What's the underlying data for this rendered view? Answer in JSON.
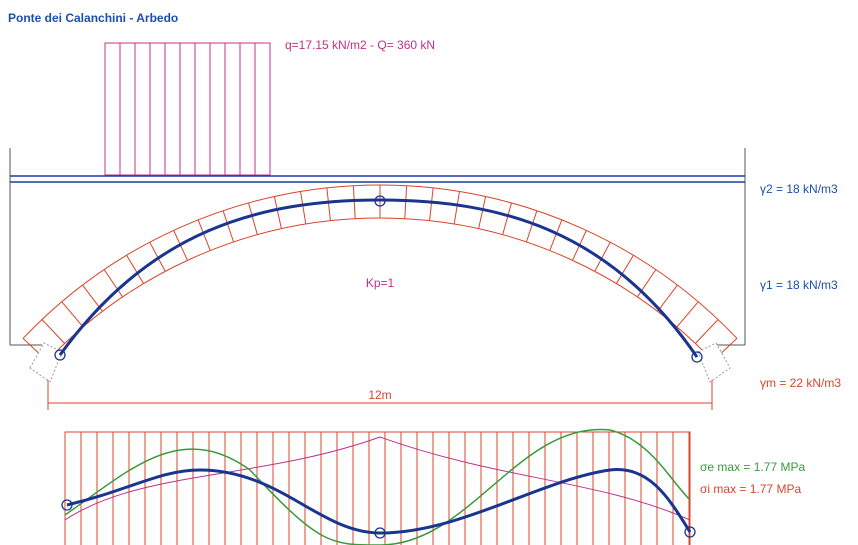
{
  "title": "Ponte dei Calanchini - Arbedo",
  "load_label": "q=17.15 kN/m2 - Q= 360 kN",
  "gamma2_label": "γ2 = 18 kN/m3",
  "gamma1_label": "γ1 = 18 kN/m3",
  "kp_label": "Kp=1",
  "gammam_label": "γm = 22 kN/m3",
  "span_label": "12m",
  "stress_ext_label": "σe max =  1.77 MPa",
  "stress_int_label": "σi max =  1.77 MPa"
}
